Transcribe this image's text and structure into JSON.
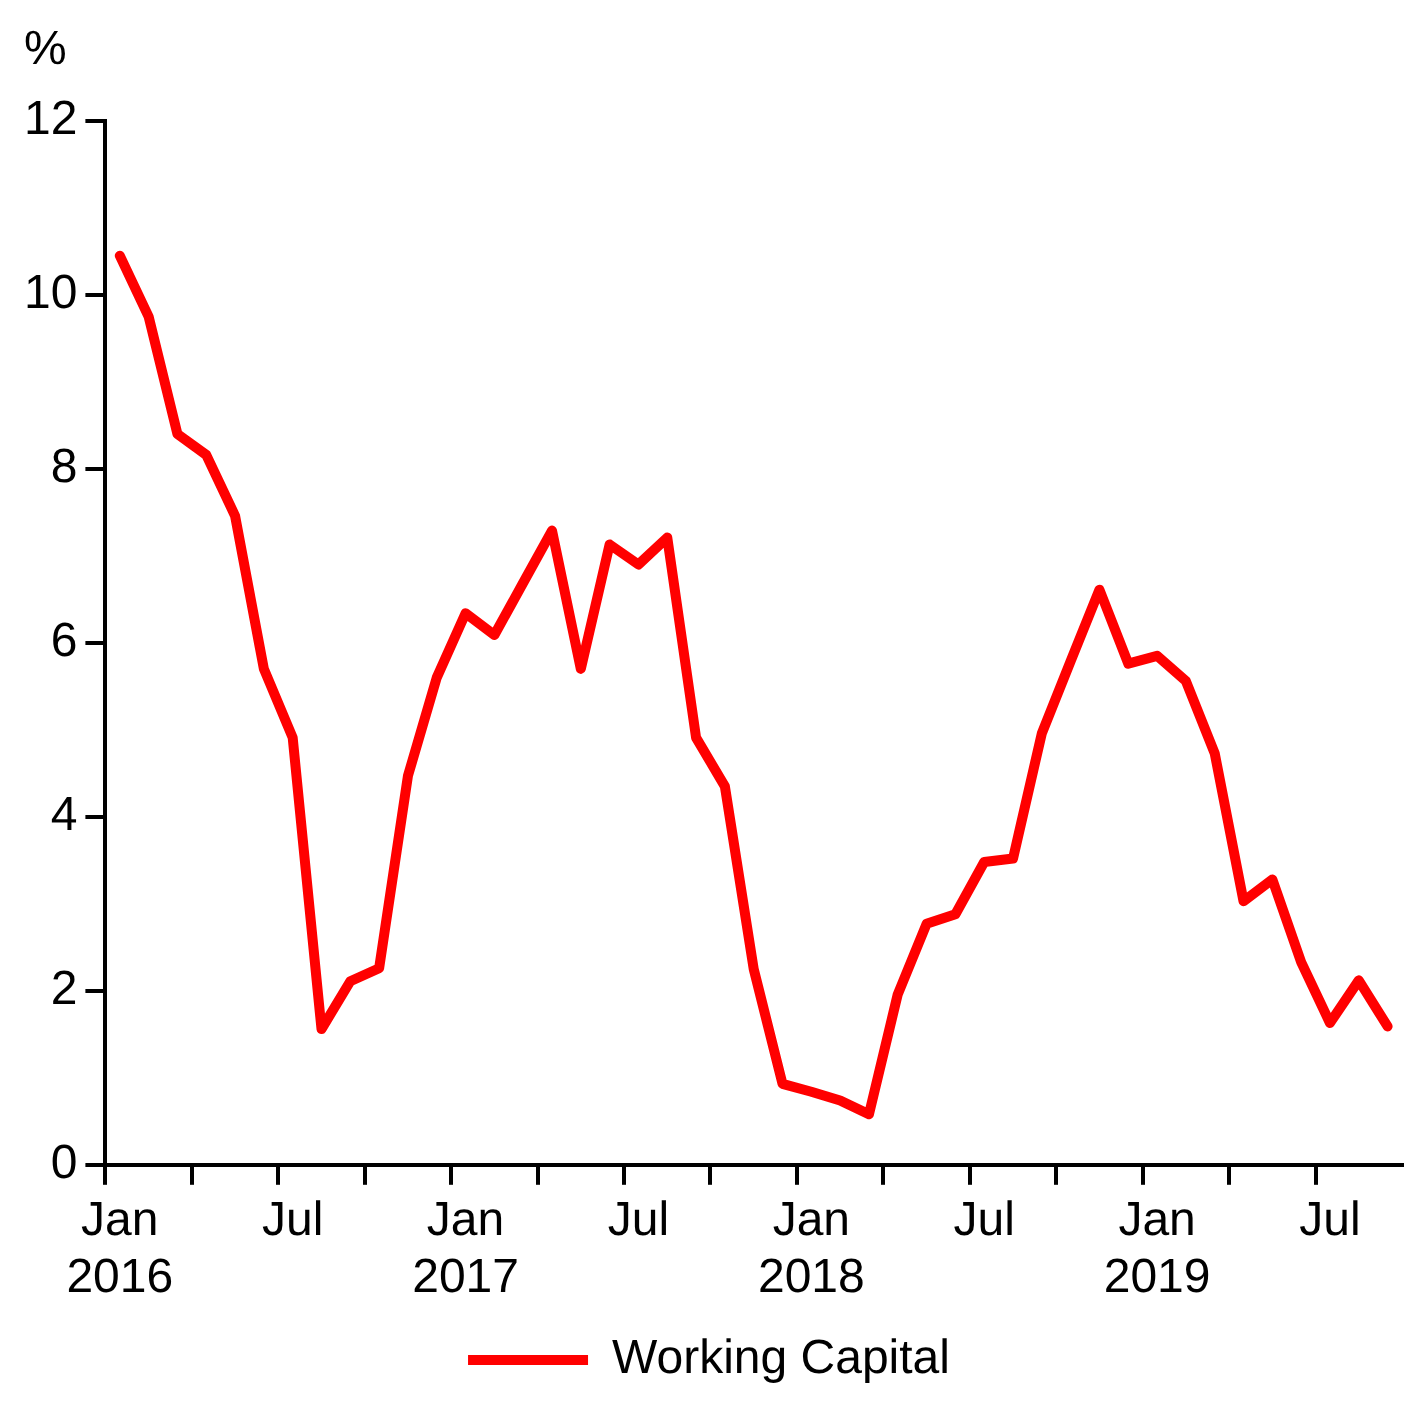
{
  "chart_data": {
    "type": "line",
    "ylabel": "%",
    "categories": [
      "Jan 2016",
      null,
      null,
      null,
      null,
      null,
      "Jul",
      null,
      null,
      null,
      null,
      null,
      "Jan 2017",
      null,
      null,
      null,
      null,
      null,
      "Jul",
      null,
      null,
      null,
      null,
      null,
      "Jan 2018",
      null,
      null,
      null,
      null,
      null,
      "Jul",
      null,
      null,
      null,
      null,
      null,
      "Jan 2019",
      null,
      null,
      null,
      null,
      null,
      "Jul",
      null,
      null
    ],
    "series": [
      {
        "name": "Working Capital",
        "color": "#ff0000",
        "values": [
          10.45,
          9.75,
          8.4,
          8.16,
          7.46,
          5.7,
          4.91,
          1.56,
          2.11,
          2.26,
          4.47,
          5.6,
          6.34,
          6.09,
          6.69,
          7.29,
          5.7,
          7.13,
          6.9,
          7.21,
          4.91,
          4.35,
          2.25,
          0.93,
          0.84,
          0.74,
          0.58,
          1.96,
          2.77,
          2.88,
          3.48,
          3.52,
          4.96,
          5.79,
          6.61,
          5.76,
          5.85,
          5.56,
          4.73,
          3.03,
          3.28,
          2.33,
          1.63,
          2.12,
          1.59
        ]
      }
    ],
    "ylim": [
      0,
      12
    ],
    "yticks": [
      0,
      2,
      4,
      6,
      8,
      10,
      12
    ],
    "grid": false,
    "legend": "bottom",
    "marker": "none",
    "line_style": "solid"
  }
}
